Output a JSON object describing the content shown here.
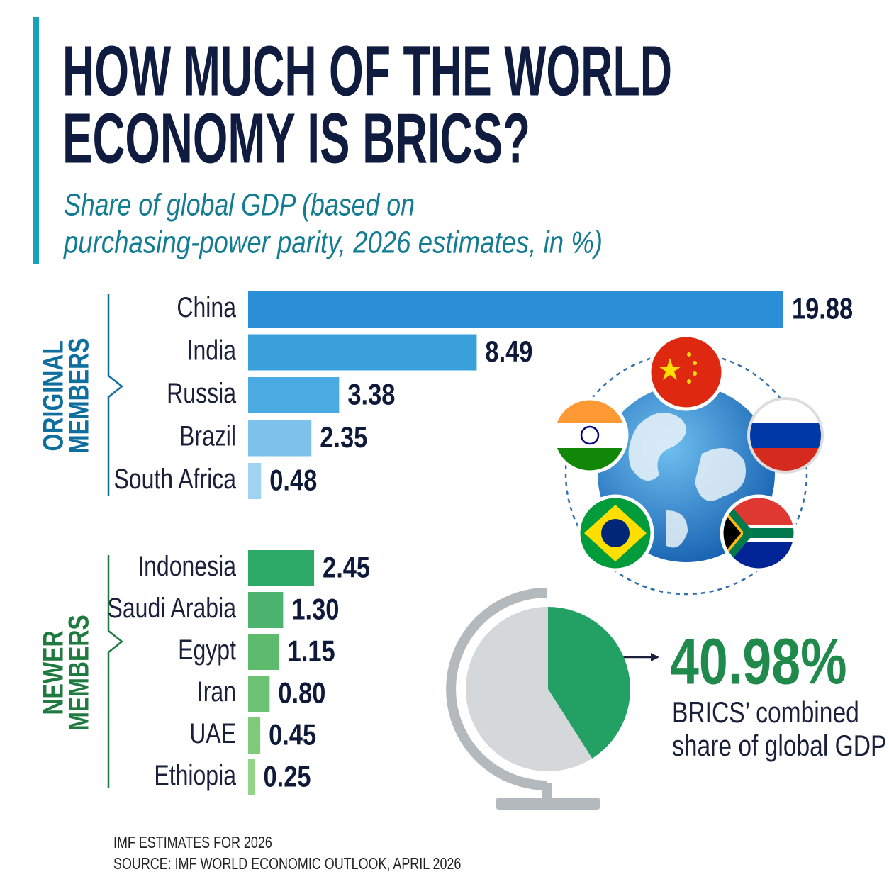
{
  "title": [
    "HOW MUCH OF THE WORLD",
    "ECONOMY IS BRICS?"
  ],
  "subtitle": [
    "Share of global GDP (based on",
    "purchasing-power parity, 2026 estimates, in %)"
  ],
  "footnotes": [
    "IMF ESTIMATES FOR 2026",
    "SOURCE: IMF WORLD ECONOMIC OUTLOOK, APRIL 2026"
  ],
  "chart_data": [
    {
      "type": "bar",
      "orientation": "horizontal",
      "groups": [
        {
          "name": [
            "ORIGINAL",
            "MEMBERS"
          ],
          "color": "#0e6f9e",
          "categories": [
            "China",
            "India",
            "Russia",
            "Brazil",
            "South Africa"
          ],
          "values": [
            19.88,
            8.49,
            3.38,
            2.35,
            0.48
          ],
          "value_labels": [
            "19.88",
            "8.49",
            "3.38",
            "2.35",
            "0.48"
          ],
          "colors": [
            "#2a8fd6",
            "#3aa0dc",
            "#4aabe2",
            "#7cc2ea",
            "#9fd3f1"
          ]
        },
        {
          "name": [
            "NEWER",
            "MEMBERS"
          ],
          "color": "#1f7a3f",
          "categories": [
            "Indonesia",
            "Saudi Arabia",
            "Egypt",
            "Iran",
            "UAE",
            "Ethiopia"
          ],
          "values": [
            2.45,
            1.3,
            1.15,
            0.8,
            0.45,
            0.25
          ],
          "value_labels": [
            "2.45",
            "1.30",
            "1.15",
            "0.80",
            "0.45",
            "0.25"
          ],
          "colors": [
            "#2eaa68",
            "#4cb46e",
            "#5dbb6e",
            "#6cc273",
            "#7fcb7a",
            "#94d487"
          ]
        }
      ]
    },
    {
      "type": "pie",
      "values": [
        40.98,
        59.02
      ],
      "value_labels": [
        "40.98%",
        null
      ],
      "colors": [
        "#23a063",
        "#d5d8db"
      ],
      "caption": [
        "BRICS’ combined",
        "share of global GDP"
      ]
    }
  ]
}
